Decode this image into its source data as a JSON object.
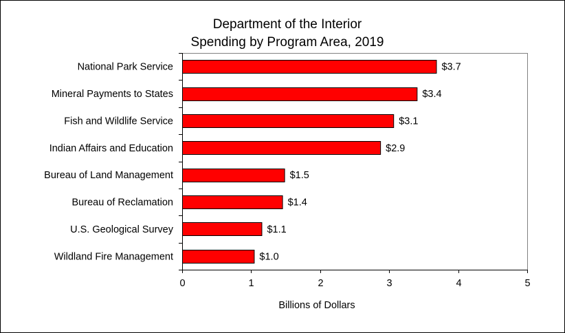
{
  "chart_data": {
    "type": "bar",
    "orientation": "horizontal",
    "title": [
      "Department of the Interior",
      "Spending by Program Area, 2019"
    ],
    "xlabel": "Billions of Dollars",
    "ylabel": "",
    "categories": [
      "National Park Service",
      "Mineral Payments to States",
      "Fish and Wildlife Service",
      "Indian Affairs and Education",
      "Bureau of Land Management",
      "Bureau of Reclamation",
      "U.S. Geological Survey",
      "Wildland Fire Management"
    ],
    "values": [
      3.68,
      3.4,
      3.06,
      2.87,
      1.48,
      1.45,
      1.15,
      1.04
    ],
    "data_labels": [
      "$3.7",
      "$3.4",
      "$3.1",
      "$2.9",
      "$1.5",
      "$1.4",
      "$1.1",
      "$1.0"
    ],
    "xlim": [
      0,
      5
    ],
    "xticks": [
      "0",
      "1",
      "2",
      "3",
      "4",
      "5"
    ],
    "grid": false,
    "legend": "none",
    "colors": {
      "bar_fill": "#ff0000",
      "bar_stroke": "#000000",
      "frame": "#808080",
      "axis": "#000000"
    }
  }
}
